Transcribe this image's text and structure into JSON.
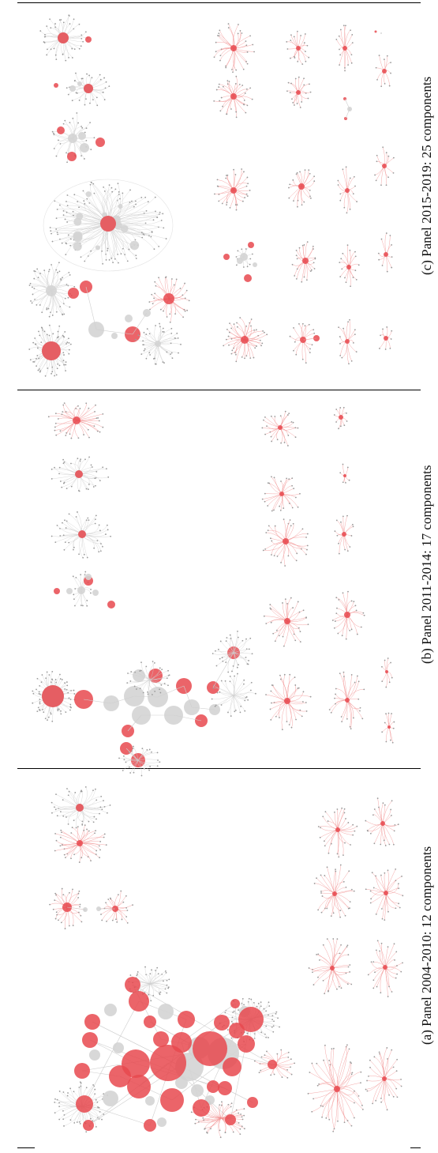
{
  "panels": [
    {
      "id": "c",
      "caption": "(c) Panel 2015-2019: 25 components",
      "components": 25
    },
    {
      "id": "b",
      "caption": "(b) Panel 2011-2014: 17 components",
      "components": 17
    },
    {
      "id": "a",
      "caption": "(a) Panel 2004-2010: 12 components",
      "components": 12
    }
  ],
  "colors": {
    "highlight_node": "#e8494f",
    "highlight_edge": "#f08a8a",
    "gray_node": "#d4d4d4",
    "gray_edge": "#cfcfcf",
    "rule": "#000000"
  }
}
